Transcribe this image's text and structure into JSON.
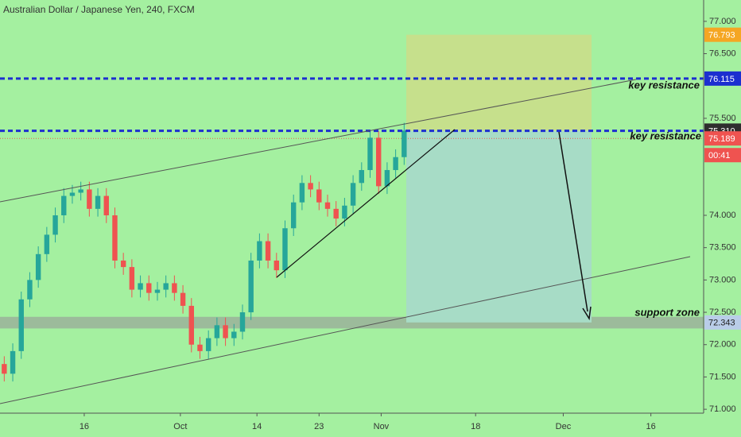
{
  "chart_data": {
    "type": "candlestick",
    "title": "Australian Dollar / Japanese Yen, 240, FXCM",
    "open": [
      71.7,
      71.55,
      71.9,
      72.7,
      73.0,
      73.4,
      73.7,
      74.0,
      74.3,
      74.35,
      74.4,
      74.1,
      74.3,
      74.0,
      73.3,
      73.2,
      72.85,
      72.95,
      72.8,
      72.85,
      72.95,
      72.8,
      72.6,
      72.0,
      71.9,
      72.1,
      72.3,
      72.1,
      72.2,
      72.5,
      73.3,
      73.6,
      73.3,
      73.15,
      73.8,
      74.2,
      74.5,
      74.4,
      74.2,
      74.1,
      73.95,
      74.15,
      74.5,
      74.7,
      75.2,
      74.45,
      74.7,
      74.9
    ],
    "high": [
      71.82,
      72.02,
      72.82,
      73.12,
      73.52,
      73.82,
      74.12,
      74.42,
      74.47,
      74.52,
      74.52,
      74.42,
      74.42,
      74.12,
      73.42,
      73.32,
      73.07,
      73.07,
      72.97,
      73.07,
      73.07,
      72.92,
      72.72,
      72.12,
      72.22,
      72.42,
      72.42,
      72.32,
      72.62,
      73.42,
      73.72,
      73.72,
      73.42,
      73.92,
      74.32,
      74.62,
      74.62,
      74.52,
      74.32,
      74.22,
      74.27,
      74.62,
      74.82,
      75.32,
      75.3,
      74.82,
      75.02,
      75.43
    ],
    "low": [
      71.43,
      71.43,
      71.78,
      72.58,
      72.88,
      73.28,
      73.58,
      73.88,
      74.18,
      74.23,
      73.98,
      73.98,
      73.88,
      73.18,
      73.08,
      72.73,
      72.73,
      72.68,
      72.68,
      72.73,
      72.68,
      72.48,
      71.88,
      71.78,
      71.78,
      71.98,
      71.98,
      71.98,
      72.08,
      72.38,
      73.18,
      73.18,
      73.03,
      73.03,
      73.68,
      74.08,
      74.28,
      74.08,
      73.98,
      73.83,
      73.83,
      74.03,
      74.38,
      74.58,
      74.33,
      74.33,
      74.58,
      74.78
    ],
    "close": [
      71.55,
      71.9,
      72.7,
      73.0,
      73.4,
      73.7,
      74.0,
      74.3,
      74.35,
      74.4,
      74.1,
      74.3,
      74.0,
      73.3,
      73.2,
      72.85,
      72.95,
      72.8,
      72.85,
      72.95,
      72.8,
      72.6,
      72.0,
      71.9,
      72.1,
      72.3,
      72.1,
      72.2,
      72.5,
      73.3,
      73.6,
      73.3,
      73.15,
      73.8,
      74.2,
      74.5,
      74.4,
      74.2,
      74.1,
      73.95,
      74.15,
      74.5,
      74.7,
      75.2,
      74.45,
      74.7,
      74.9,
      75.31
    ],
    "up_color": "#26a69a",
    "down_color": "#ef5350",
    "background": "#a4f0a0",
    "xlim": [
      -0.5,
      82.2
    ],
    "xticks": [
      {
        "value": 9.4,
        "label": "16"
      },
      {
        "value": 20.7,
        "label": "Oct"
      },
      {
        "value": 29.7,
        "label": "14"
      },
      {
        "value": 37,
        "label": "23"
      },
      {
        "value": 44.3,
        "label": "Nov"
      },
      {
        "value": 55.4,
        "label": "18"
      },
      {
        "value": 65.7,
        "label": "Dec"
      },
      {
        "value": 76,
        "label": "16"
      }
    ],
    "ylim": [
      70.94,
      77.33
    ],
    "yticks": [
      {
        "value": 71,
        "label": "71.000"
      },
      {
        "value": 71.5,
        "label": "71.500"
      },
      {
        "value": 72,
        "label": "72.000"
      },
      {
        "value": 72.5,
        "label": "72.500"
      },
      {
        "value": 73,
        "label": "73.000"
      },
      {
        "value": 73.5,
        "label": "73.500"
      },
      {
        "value": 74,
        "label": "74.000"
      },
      {
        "value": 75.5,
        "label": "75.500"
      },
      {
        "value": 76.5,
        "label": "76.500"
      },
      {
        "value": 77,
        "label": "77.000"
      }
    ],
    "price_tags": [
      {
        "value": 76.793,
        "label": "76.793",
        "color": "#f5a623"
      },
      {
        "value": 76.115,
        "label": "76.115",
        "color": "#1c2fd0"
      },
      {
        "value": 75.307,
        "label": "75.307",
        "color": "#1c2fd0"
      },
      {
        "value": 75.31,
        "label": "75.310",
        "color": "#2e2e2e"
      },
      {
        "value": 75.189,
        "label": "75.189",
        "color": "#ef5350"
      },
      {
        "value": 72.343,
        "label": "72.343",
        "color": "#b9cde8"
      }
    ],
    "countdown": "00:41",
    "resistance_levels": [
      76.115,
      75.307
    ],
    "resistance_label": "key resistance",
    "support_zone": [
      72.25,
      72.43
    ],
    "support_label": "support zone"
  }
}
